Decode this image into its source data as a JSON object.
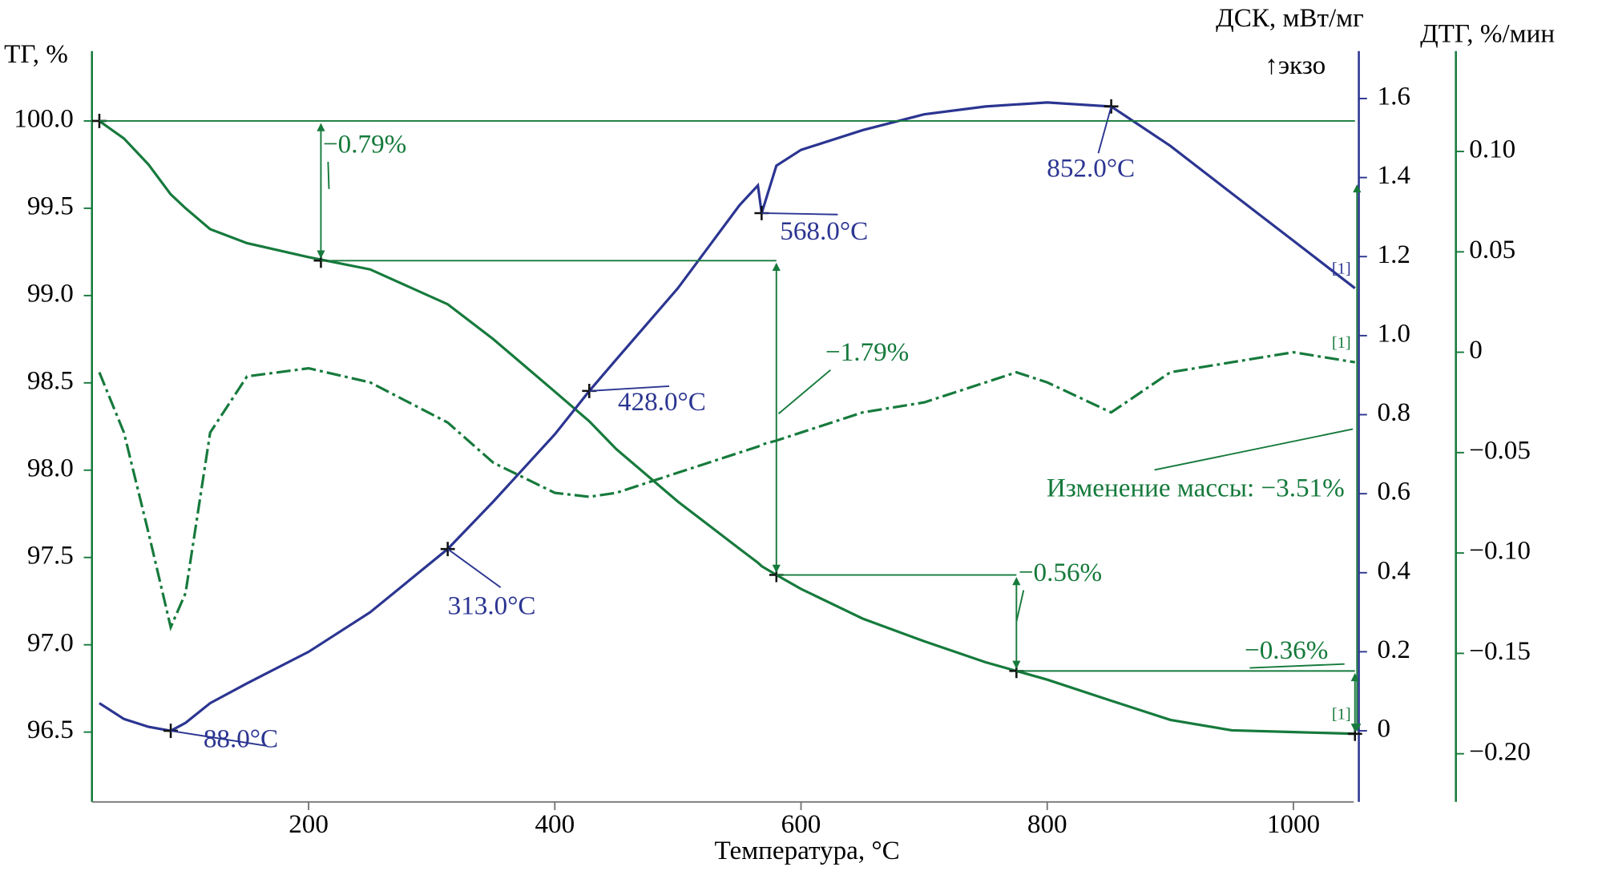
{
  "chart_data": {
    "type": "line",
    "title_left": "ТГ, %",
    "title_y2": "ДСК, мВт/мг",
    "title_y3": "ДТГ, %/мин",
    "xlabel": "Температура, °C",
    "exo": "↑экзо",
    "x": [
      30,
      50,
      70,
      88,
      100,
      120,
      150,
      200,
      250,
      313,
      350,
      400,
      428,
      450,
      500,
      550,
      565,
      568,
      580,
      600,
      650,
      700,
      750,
      775,
      800,
      852,
      900,
      950,
      1000,
      1050
    ],
    "xlim": [
      24,
      1049
    ],
    "xticks": [
      200,
      400,
      600,
      800,
      1000
    ],
    "ylim": [
      96.1,
      100.4
    ],
    "yticks": [
      {
        "value": 96.5,
        "label": "96.5"
      },
      {
        "value": 97,
        "label": "97.0"
      },
      {
        "value": 97.5,
        "label": "97.5"
      },
      {
        "value": 98,
        "label": "98.0"
      },
      {
        "value": 98.5,
        "label": "98.5"
      },
      {
        "value": 99,
        "label": "99.0"
      },
      {
        "value": 99.5,
        "label": "99.5"
      },
      {
        "value": 100,
        "label": "100.0"
      }
    ],
    "y2lim": [
      -0.18,
      1.72
    ],
    "y2ticks": [
      0,
      0.2,
      0.4,
      0.6,
      0.8,
      {
        "value": 1,
        "label": "1.0"
      },
      1.2,
      1.4,
      1.6
    ],
    "y3lim": [
      -0.224,
      0.15
    ],
    "y3ticks": [
      {
        "value": -0.2,
        "label": "−0.20"
      },
      {
        "value": -0.15,
        "label": "−0.15"
      },
      {
        "value": -0.1,
        "label": "−0.10"
      },
      {
        "value": -0.05,
        "label": "−0.05"
      },
      0,
      0.05,
      {
        "value": 0.1,
        "label": "0.10"
      }
    ],
    "series": [
      {
        "name": "ТГ",
        "color": "#167a3c",
        "axis": "y",
        "end_label": "[1]",
        "values": [
          100.0,
          99.9,
          99.75,
          99.58,
          99.5,
          99.38,
          99.3,
          99.22,
          99.15,
          98.95,
          98.75,
          98.45,
          98.28,
          98.12,
          97.82,
          97.55,
          97.47,
          97.45,
          97.4,
          97.32,
          97.15,
          97.02,
          96.9,
          96.85,
          96.8,
          96.68,
          96.57,
          96.51,
          96.5,
          96.49
        ]
      },
      {
        "name": "ДСК",
        "color": "#2b3591",
        "axis": "y2",
        "end_label": "[1]",
        "values": [
          0.07,
          0.03,
          0.01,
          0.0,
          0.02,
          0.07,
          0.12,
          0.2,
          0.3,
          0.46,
          0.58,
          0.75,
          0.86,
          0.94,
          1.12,
          1.33,
          1.38,
          1.31,
          1.43,
          1.47,
          1.52,
          1.56,
          1.58,
          1.585,
          1.59,
          1.58,
          1.48,
          1.36,
          1.24,
          1.12
        ]
      },
      {
        "name": "ДТГ",
        "color": "#167a3c",
        "axis": "y3",
        "end_label": "[1]",
        "values": [
          -0.01,
          -0.04,
          -0.09,
          -0.137,
          -0.12,
          -0.04,
          -0.012,
          -0.008,
          -0.015,
          -0.035,
          -0.055,
          -0.07,
          -0.072,
          -0.07,
          -0.06,
          -0.05,
          -0.047,
          -0.046,
          -0.044,
          -0.04,
          -0.03,
          -0.025,
          -0.015,
          -0.01,
          -0.015,
          -0.03,
          -0.01,
          -0.005,
          0.0,
          -0.005
        ]
      }
    ],
    "annotations": [
      {
        "text": "88.0°C",
        "x": 88,
        "y": 0.0
      },
      {
        "text": "313.0°C",
        "x": 313,
        "y": 0.46
      },
      {
        "text": "428.0°C",
        "x": 428,
        "y": 0.86
      },
      {
        "text": "568.0°C",
        "x": 568,
        "y": 1.31
      },
      {
        "text": "852.0°C",
        "x": 852,
        "y": 1.58
      }
    ],
    "tg_markers": [
      {
        "x": 30,
        "y": 100.0
      },
      {
        "x": 210,
        "y": 99.2
      },
      {
        "x": 580,
        "y": 97.4
      },
      {
        "x": 775,
        "y": 96.85
      },
      {
        "x": 1050,
        "y": 96.49
      }
    ],
    "steps": [
      "−0.79%",
      "−1.79%",
      "−0.56%",
      "−0.36%"
    ],
    "total_change": "Изменение массы: −3.51%"
  }
}
